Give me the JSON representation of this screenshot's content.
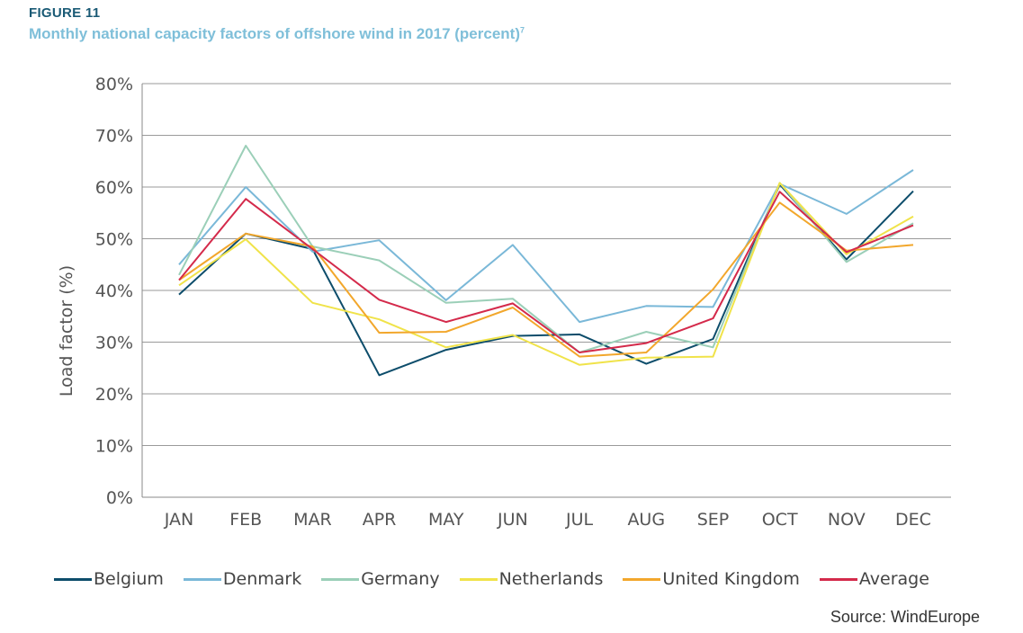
{
  "figure": {
    "label": "FIGURE 11",
    "title": "Monthly national capacity factors of offshore wind in 2017 (percent)",
    "title_sup": "7",
    "source": "Source: WindEurope"
  },
  "chart_data": {
    "type": "line",
    "title": "Monthly national capacity factors of offshore wind in 2017 (percent)",
    "xlabel": "",
    "ylabel": "Load factor (%)",
    "ylim": [
      0,
      80
    ],
    "yticks": [
      "0%",
      "10%",
      "20%",
      "30%",
      "40%",
      "50%",
      "60%",
      "70%",
      "80%"
    ],
    "grid": true,
    "legend_position": "bottom",
    "categories": [
      "JAN",
      "FEB",
      "MAR",
      "APR",
      "MAY",
      "JUN",
      "JUL",
      "AUG",
      "SEP",
      "OCT",
      "NOV",
      "DEC"
    ],
    "series": [
      {
        "name": "Belgium",
        "color": "#0d4d6b",
        "values": [
          39.2,
          51.0,
          48.0,
          23.6,
          28.5,
          31.2,
          31.5,
          25.8,
          30.6,
          60.5,
          46.0,
          59.2
        ]
      },
      {
        "name": "Denmark",
        "color": "#7ab8d8",
        "values": [
          45.0,
          60.0,
          47.5,
          49.7,
          38.1,
          48.8,
          33.9,
          37.0,
          36.8,
          60.6,
          54.8,
          63.3
        ]
      },
      {
        "name": "Germany",
        "color": "#9bcfb8",
        "values": [
          43.0,
          68.0,
          48.5,
          45.8,
          37.6,
          38.4,
          28.0,
          32.0,
          29.0,
          60.8,
          45.5,
          53.0
        ]
      },
      {
        "name": "Netherlands",
        "color": "#f0e34a",
        "values": [
          41.0,
          49.9,
          37.6,
          34.4,
          29.0,
          31.4,
          25.6,
          27.0,
          27.2,
          60.8,
          47.0,
          54.3
        ]
      },
      {
        "name": "United Kingdom",
        "color": "#f2a72c",
        "values": [
          42.0,
          51.0,
          48.5,
          31.8,
          32.0,
          36.7,
          27.2,
          28.0,
          40.2,
          57.0,
          47.7,
          48.8
        ]
      },
      {
        "name": "Average",
        "color": "#d42a4b",
        "values": [
          42.0,
          57.7,
          48.0,
          38.2,
          33.9,
          37.5,
          28.0,
          29.8,
          34.6,
          59.1,
          47.4,
          52.6
        ]
      }
    ]
  }
}
